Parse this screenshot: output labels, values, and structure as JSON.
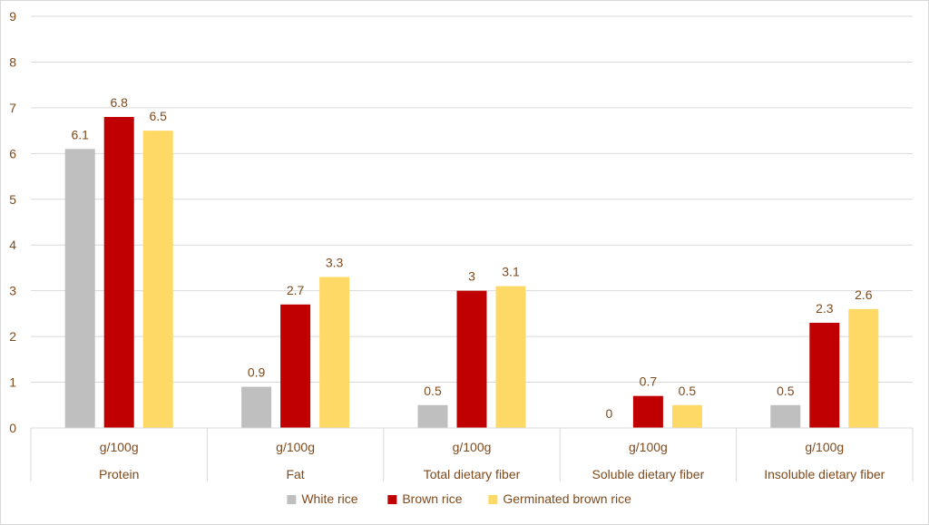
{
  "chart_data": {
    "type": "bar",
    "title": "",
    "xlabel": "",
    "ylabel": "",
    "ylim": [
      0,
      9
    ],
    "yticks": [
      0,
      1,
      2,
      3,
      4,
      5,
      6,
      7,
      8,
      9
    ],
    "grid": true,
    "legend_position": "bottom",
    "categories": [
      {
        "unit": "g/100g",
        "name": "Protein"
      },
      {
        "unit": "g/100g",
        "name": "Fat"
      },
      {
        "unit": "g/100g",
        "name": "Total dietary fiber"
      },
      {
        "unit": "g/100g",
        "name": "Soluble dietary fiber"
      },
      {
        "unit": "g/100g",
        "name": "Insoluble dietary fiber"
      }
    ],
    "series": [
      {
        "name": "White rice",
        "color": "#bfbfbf",
        "values": [
          6.1,
          0.9,
          0.5,
          0,
          0.5
        ]
      },
      {
        "name": "Brown rice",
        "color": "#c00000",
        "values": [
          6.8,
          2.7,
          3,
          0.7,
          2.3
        ]
      },
      {
        "name": "Germinated brown rice",
        "color": "#ffd966",
        "values": [
          6.5,
          3.3,
          3.1,
          0.5,
          2.6
        ]
      }
    ]
  }
}
